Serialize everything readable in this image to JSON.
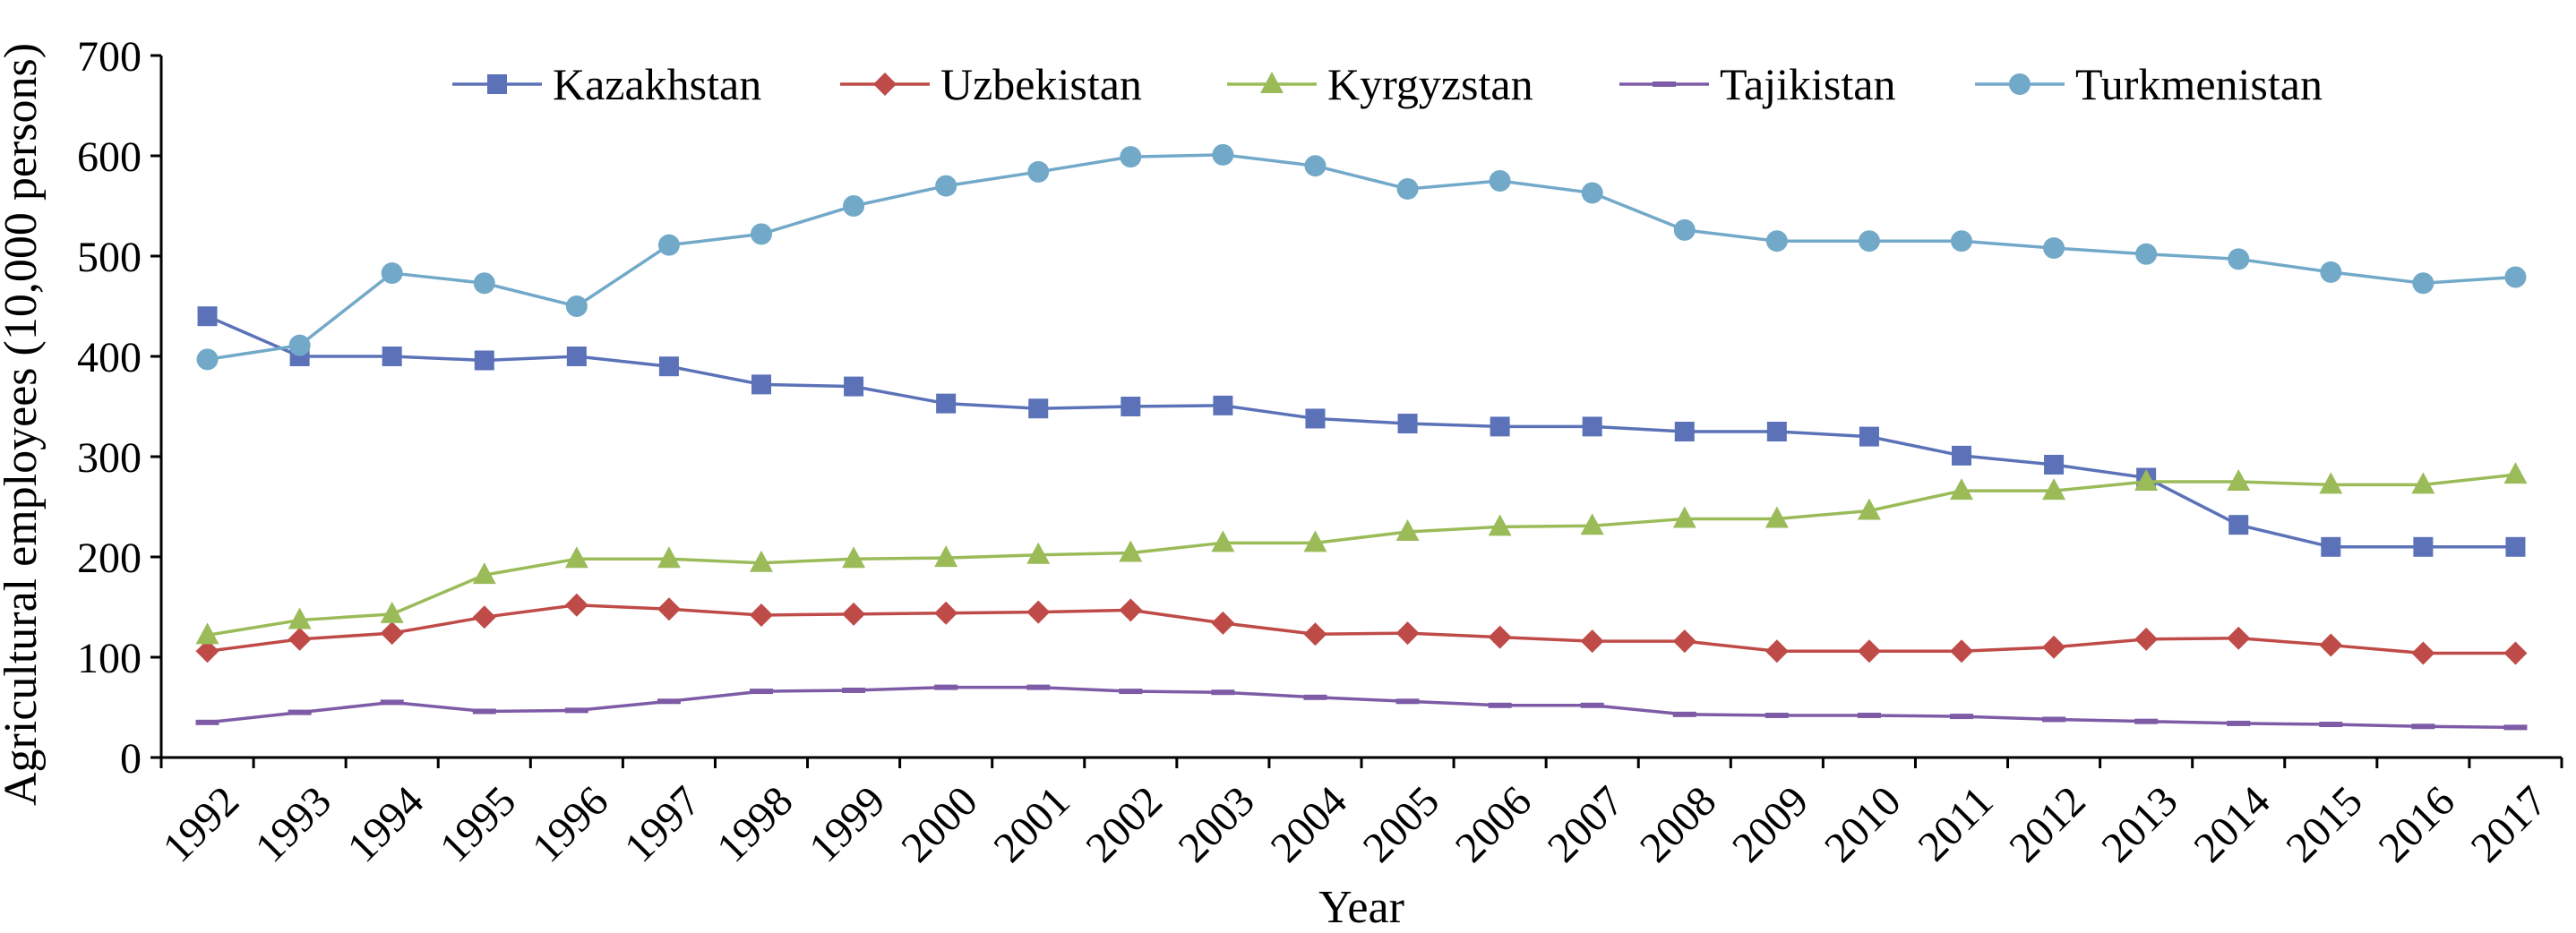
{
  "chart_data": {
    "type": "line",
    "title": "",
    "xlabel": "Year",
    "ylabel": "Agricultural employees (10,000 persons)",
    "ylim": [
      0,
      700
    ],
    "yticks": [
      0,
      100,
      200,
      300,
      400,
      500,
      600,
      700
    ],
    "legend_position": "top",
    "grid": false,
    "categories": [
      "1992",
      "1993",
      "1994",
      "1995",
      "1996",
      "1997",
      "1998",
      "1999",
      "2000",
      "2001",
      "2002",
      "2003",
      "2004",
      "2005",
      "2006",
      "2007",
      "2008",
      "2009",
      "2010",
      "2011",
      "2012",
      "2013",
      "2014",
      "2015",
      "2016",
      "2017"
    ],
    "series": [
      {
        "name": "Kazakhstan",
        "color": "#5b72b8",
        "marker": "square",
        "values": [
          440,
          400,
          400,
          396,
          400,
          390,
          372,
          370,
          353,
          348,
          350,
          351,
          338,
          333,
          330,
          330,
          325,
          325,
          320,
          301,
          292,
          279,
          232,
          210,
          210,
          210
        ]
      },
      {
        "name": "Uzbekistan",
        "color": "#bf4b48",
        "marker": "diamond",
        "values": [
          106,
          118,
          124,
          140,
          152,
          148,
          142,
          143,
          144,
          145,
          147,
          134,
          123,
          124,
          120,
          116,
          116,
          106,
          106,
          106,
          110,
          118,
          119,
          112,
          104,
          104
        ]
      },
      {
        "name": "Kyrgyzstan",
        "color": "#9bbb59",
        "marker": "triangle",
        "values": [
          122,
          137,
          143,
          182,
          198,
          198,
          194,
          198,
          199,
          202,
          204,
          214,
          214,
          225,
          230,
          231,
          238,
          238,
          246,
          266,
          266,
          275,
          275,
          272,
          272,
          282
        ]
      },
      {
        "name": "Tajikistan",
        "color": "#7d5ba6",
        "marker": "dash",
        "values": [
          35,
          45,
          55,
          46,
          47,
          56,
          66,
          67,
          70,
          70,
          66,
          65,
          60,
          56,
          52,
          52,
          43,
          42,
          42,
          41,
          38,
          36,
          34,
          33,
          31,
          30
        ]
      },
      {
        "name": "Turkmenistan",
        "color": "#72a9c9",
        "marker": "circle",
        "values": [
          397,
          411,
          483,
          473,
          450,
          511,
          522,
          550,
          570,
          584,
          599,
          601,
          590,
          567,
          575,
          563,
          526,
          515,
          515,
          515,
          508,
          502,
          497,
          484,
          473,
          479
        ]
      }
    ]
  }
}
